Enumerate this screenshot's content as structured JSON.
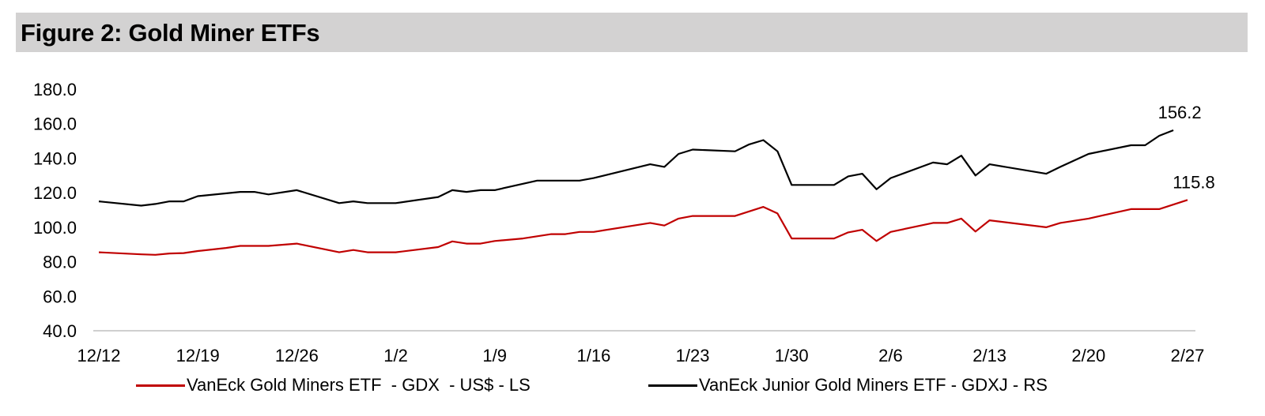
{
  "figure_title": "Figure 2: Gold Miner ETFs",
  "colors": {
    "gdx": "#c00000",
    "gdxj": "#000000",
    "title_bg": "#d3d2d2",
    "axis": "#bfbfbf"
  },
  "legend": {
    "gdx": "VanEck Gold Miners ETF  - GDX  - US$ - LS",
    "gdxj": "VanEck Junior Gold Miners ETF - GDXJ - RS"
  },
  "chart_data": {
    "type": "line",
    "title": "Figure 2: Gold Miner ETFs",
    "xlabel": "",
    "ylabel": "",
    "ylim": [
      40,
      180
    ],
    "yticks": [
      "40.0",
      "60.0",
      "80.0",
      "100.0",
      "120.0",
      "140.0",
      "160.0",
      "180.0"
    ],
    "x_range_days": [
      0,
      77
    ],
    "xticks": [
      {
        "label": "12/12",
        "day": 0
      },
      {
        "label": "12/19",
        "day": 7
      },
      {
        "label": "12/26",
        "day": 14
      },
      {
        "label": "1/2",
        "day": 21
      },
      {
        "label": "1/9",
        "day": 28
      },
      {
        "label": "1/16",
        "day": 35
      },
      {
        "label": "1/23",
        "day": 42
      },
      {
        "label": "1/30",
        "day": 49
      },
      {
        "label": "2/6",
        "day": 56
      },
      {
        "label": "2/13",
        "day": 63
      },
      {
        "label": "2/20",
        "day": 70
      },
      {
        "label": "2/27",
        "day": 77
      }
    ],
    "series": [
      {
        "name": "VanEck Gold Miners ETF  - GDX  - US$ - LS",
        "key": "gdx",
        "last_label": "115.8",
        "points": [
          [
            0,
            85.5
          ],
          [
            3,
            84.3
          ],
          [
            4,
            84.0
          ],
          [
            5,
            84.8
          ],
          [
            6,
            85.0
          ],
          [
            7,
            86.2
          ],
          [
            9,
            88.0
          ],
          [
            10,
            89.2
          ],
          [
            12,
            89.2
          ],
          [
            14,
            90.5
          ],
          [
            17,
            85.5
          ],
          [
            18,
            86.8
          ],
          [
            19,
            85.5
          ],
          [
            21,
            85.5
          ],
          [
            24,
            88.5
          ],
          [
            25,
            91.8
          ],
          [
            26,
            90.5
          ],
          [
            27,
            90.5
          ],
          [
            28,
            92.0
          ],
          [
            30,
            93.5
          ],
          [
            32,
            96.0
          ],
          [
            33,
            96.0
          ],
          [
            34,
            97.3
          ],
          [
            35,
            97.3
          ],
          [
            39,
            102.5
          ],
          [
            40,
            101.0
          ],
          [
            41,
            105.0
          ],
          [
            42,
            106.5
          ],
          [
            45,
            106.5
          ],
          [
            47,
            111.8
          ],
          [
            48,
            108.0
          ],
          [
            49,
            93.5
          ],
          [
            52,
            93.5
          ],
          [
            53,
            97.0
          ],
          [
            54,
            98.5
          ],
          [
            55,
            92.0
          ],
          [
            56,
            97.3
          ],
          [
            59,
            102.5
          ],
          [
            60,
            102.5
          ],
          [
            61,
            105.0
          ],
          [
            62,
            97.5
          ],
          [
            63,
            104.0
          ],
          [
            67,
            100.0
          ],
          [
            68,
            102.5
          ],
          [
            70,
            105.0
          ],
          [
            73,
            110.5
          ],
          [
            75,
            110.5
          ],
          [
            77,
            115.8
          ]
        ]
      },
      {
        "name": "VanEck Junior Gold Miners ETF - GDXJ - RS",
        "key": "gdxj",
        "last_label": "156.2",
        "points": [
          [
            0,
            115.0
          ],
          [
            3,
            112.5
          ],
          [
            4,
            113.5
          ],
          [
            5,
            115.0
          ],
          [
            6,
            115.0
          ],
          [
            7,
            118.0
          ],
          [
            10,
            120.5
          ],
          [
            11,
            120.5
          ],
          [
            12,
            119.0
          ],
          [
            14,
            121.5
          ],
          [
            17,
            114.0
          ],
          [
            18,
            115.0
          ],
          [
            19,
            114.0
          ],
          [
            21,
            114.0
          ],
          [
            24,
            117.5
          ],
          [
            25,
            121.5
          ],
          [
            26,
            120.5
          ],
          [
            27,
            121.5
          ],
          [
            28,
            121.5
          ],
          [
            31,
            127.0
          ],
          [
            34,
            127.0
          ],
          [
            35,
            128.5
          ],
          [
            39,
            136.5
          ],
          [
            40,
            135.0
          ],
          [
            41,
            142.5
          ],
          [
            42,
            145.0
          ],
          [
            45,
            144.0
          ],
          [
            46,
            148.0
          ],
          [
            47,
            150.5
          ],
          [
            48,
            144.0
          ],
          [
            49,
            124.5
          ],
          [
            52,
            124.5
          ],
          [
            53,
            129.5
          ],
          [
            54,
            131.0
          ],
          [
            55,
            122.0
          ],
          [
            56,
            128.5
          ],
          [
            59,
            137.5
          ],
          [
            60,
            136.5
          ],
          [
            61,
            141.5
          ],
          [
            62,
            130.0
          ],
          [
            63,
            136.5
          ],
          [
            67,
            131.0
          ],
          [
            68,
            135.0
          ],
          [
            70,
            142.5
          ],
          [
            73,
            147.5
          ],
          [
            74,
            147.5
          ],
          [
            75,
            153.0
          ],
          [
            76,
            156.2
          ]
        ]
      }
    ]
  }
}
